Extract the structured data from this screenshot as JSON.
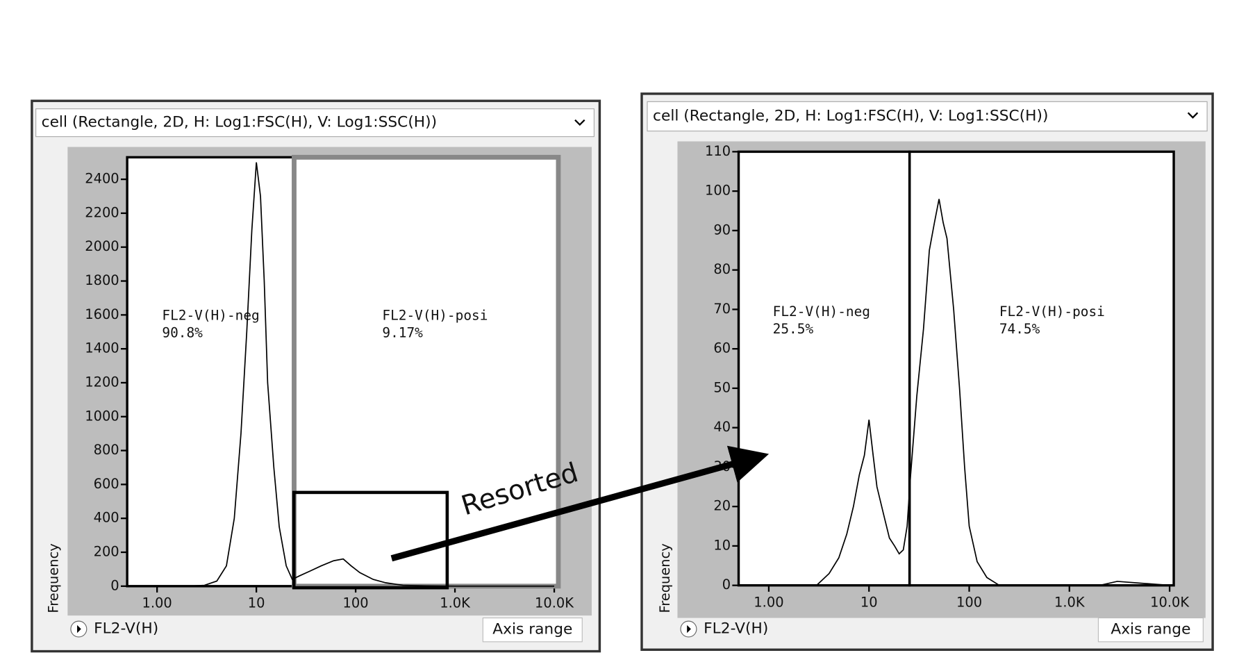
{
  "chart_data": [
    {
      "type": "line",
      "dropdown": "cell (Rectangle, 2D, H: Log1:FSC(H), V: Log1:SSC(H))",
      "xlabel": "FL2-V(H)",
      "ylabel": "Frequency",
      "button": "Axis range",
      "xscale": "log",
      "xlim": [
        0.5,
        11000
      ],
      "xticks": [
        {
          "value": 1,
          "label": "1.00"
        },
        10,
        100,
        {
          "value": 1000,
          "label": "1.0K"
        },
        {
          "value": 10000,
          "label": "10.0K"
        }
      ],
      "ylim": [
        0,
        2530
      ],
      "yticks": [
        0,
        200,
        400,
        600,
        800,
        1000,
        1200,
        1400,
        1600,
        1800,
        2000,
        2200,
        2400
      ],
      "color": "#000000",
      "x": [
        2,
        3,
        4,
        5,
        6,
        7,
        8,
        9,
        10,
        11,
        12,
        13,
        15,
        17,
        20,
        23,
        27,
        35,
        45,
        60,
        75,
        90,
        110,
        150,
        200,
        300,
        500,
        1000,
        10000
      ],
      "values": [
        0,
        5,
        30,
        120,
        400,
        900,
        1500,
        2100,
        2500,
        2300,
        1800,
        1200,
        700,
        350,
        120,
        40,
        60,
        90,
        120,
        150,
        160,
        120,
        80,
        40,
        20,
        5,
        2,
        0,
        0
      ],
      "gates": [
        {
          "label": "FL2-V(H)-neg",
          "percent": "90.8%",
          "range": [
            0.5,
            24
          ]
        },
        {
          "label": "FL2-V(H)-posi",
          "percent": "9.17%",
          "range": [
            24,
            11000
          ]
        }
      ],
      "annotation": "Resorted"
    },
    {
      "type": "line",
      "dropdown": "cell (Rectangle, 2D, H: Log1:FSC(H), V: Log1:SSC(H))",
      "xlabel": "FL2-V(H)",
      "ylabel": "Frequency",
      "button": "Axis range",
      "xscale": "log",
      "xlim": [
        0.5,
        11000
      ],
      "xticks": [
        {
          "value": 1,
          "label": "1.00"
        },
        10,
        100,
        {
          "value": 1000,
          "label": "1.0K"
        },
        {
          "value": 10000,
          "label": "10.0K"
        }
      ],
      "ylim": [
        0,
        110
      ],
      "yticks": [
        0,
        10,
        20,
        30,
        40,
        50,
        60,
        70,
        80,
        90,
        100,
        110
      ],
      "color": "#000000",
      "x": [
        2,
        3,
        4,
        5,
        6,
        7,
        8,
        9,
        10,
        11,
        12,
        14,
        16,
        18,
        20,
        22,
        24,
        26,
        30,
        35,
        40,
        45,
        50,
        55,
        60,
        70,
        80,
        90,
        100,
        120,
        150,
        200,
        500,
        2000,
        3000,
        10000
      ],
      "values": [
        0,
        0,
        3,
        7,
        13,
        20,
        28,
        33,
        42,
        33,
        25,
        18,
        12,
        10,
        8,
        9,
        15,
        28,
        48,
        65,
        85,
        92,
        98,
        92,
        88,
        70,
        50,
        30,
        15,
        6,
        2,
        0,
        0,
        0,
        1,
        0
      ],
      "gates": [
        {
          "label": "FL2-V(H)-neg",
          "percent": "25.5%",
          "range": [
            0.5,
            25.4
          ]
        },
        {
          "label": "FL2-V(H)-posi",
          "percent": "74.5%",
          "range": [
            25.4,
            11000
          ]
        }
      ]
    }
  ]
}
